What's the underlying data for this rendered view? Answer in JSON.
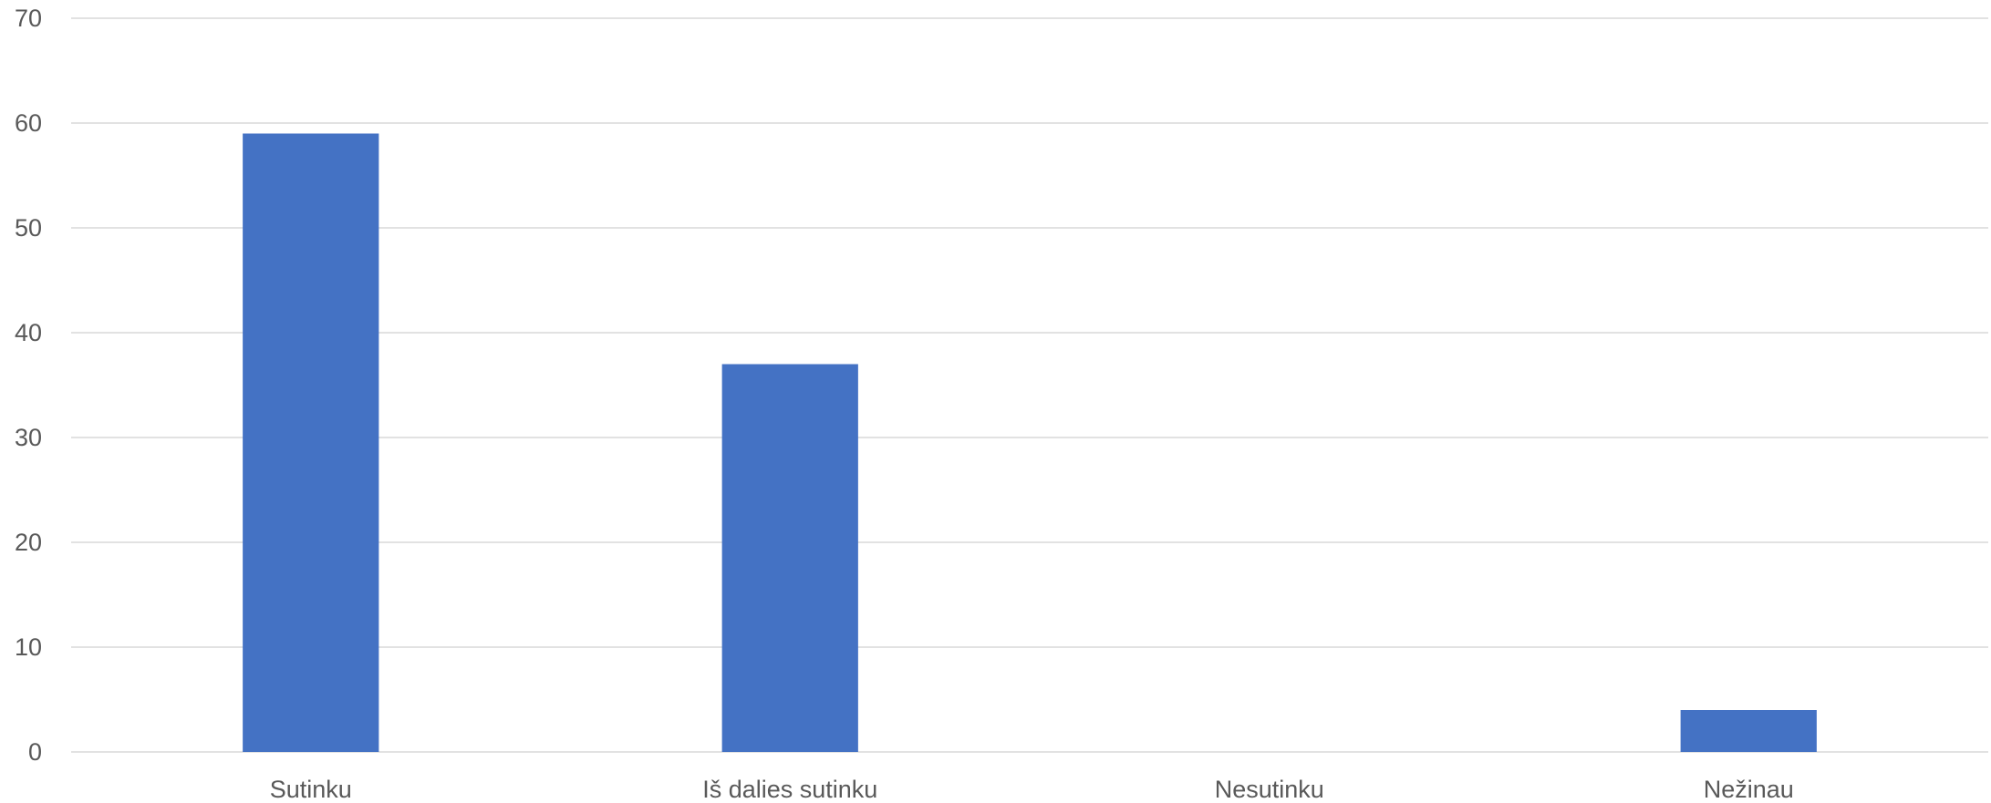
{
  "chart_data": {
    "type": "bar",
    "title": "",
    "xlabel": "",
    "ylabel": "",
    "categories": [
      "Sutinku",
      "Iš dalies sutinku",
      "Nesutinku",
      "Nežinau"
    ],
    "values": [
      59,
      37,
      0,
      4
    ],
    "ylim": [
      0,
      70
    ],
    "yticks": [
      0,
      10,
      20,
      30,
      40,
      50,
      60,
      70
    ],
    "grid": true,
    "legend": "none",
    "colors": {
      "bar": "#4472C4",
      "grid": "#D9D9D9",
      "text": "#595959"
    }
  }
}
